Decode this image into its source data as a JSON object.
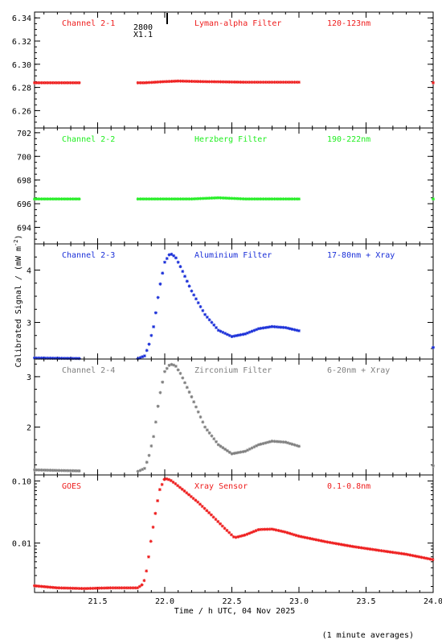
{
  "footer_note": "(1 minute averages)",
  "ylabel_main": "Calibrated Signal / (mW m",
  "ylabel_sup": "-2",
  "ylabel_close": ")",
  "xlabel": "Time / h UTC, 04 Nov 2025",
  "marker": {
    "line1": "2800",
    "line2": "X1.1"
  },
  "chart_data": [
    {
      "type": "scatter",
      "channel": "Channel 2-1",
      "filter": "Lyman-alpha Filter",
      "band": "120-123nm",
      "color": "#ee1c1c",
      "ylim": [
        6.245,
        6.345
      ],
      "yticks": [
        6.26,
        6.28,
        6.3,
        6.32,
        6.34
      ],
      "ytick_labels": [
        "6.26",
        "6.28",
        "6.30",
        "6.32",
        "6.34"
      ],
      "segments": [
        {
          "x": [
            21.03,
            21.37
          ],
          "y": [
            6.284,
            6.284
          ]
        },
        {
          "x": [
            21.8,
            21.85,
            22.0,
            22.1,
            22.3,
            22.6,
            23.0
          ],
          "y": [
            6.284,
            6.284,
            6.285,
            6.2855,
            6.285,
            6.2845,
            6.2845
          ]
        },
        {
          "x": [
            24.0,
            24.0
          ],
          "y": [
            6.284,
            6.284
          ]
        }
      ]
    },
    {
      "type": "scatter",
      "channel": "Channel 2-2",
      "filter": "Herzberg Filter",
      "band": "190-222nm",
      "color": "#22ee22",
      "ylim": [
        692.6,
        702.4
      ],
      "yticks": [
        694,
        696,
        698,
        700,
        702
      ],
      "ytick_labels": [
        "694",
        "696",
        "698",
        "700",
        "702"
      ],
      "segments": [
        {
          "x": [
            21.03,
            21.37
          ],
          "y": [
            696.4,
            696.4
          ]
        },
        {
          "x": [
            21.8,
            22.2,
            22.4,
            22.6,
            23.0
          ],
          "y": [
            696.4,
            696.4,
            696.5,
            696.4,
            696.4
          ]
        },
        {
          "x": [
            24.0,
            24.0
          ],
          "y": [
            696.4,
            696.4
          ]
        }
      ]
    },
    {
      "type": "scatter",
      "channel": "Channel 2-3",
      "filter": "Aluminium Filter",
      "band": "17-80nm + Xray",
      "color": "#1a2fd8",
      "ylim": [
        2.3,
        4.5
      ],
      "yticks": [
        3,
        4
      ],
      "ytick_labels": [
        "3",
        "4"
      ],
      "segments": [
        {
          "x": [
            21.03,
            21.37
          ],
          "y": [
            2.32,
            2.31
          ]
        },
        {
          "x": [
            21.8,
            21.85,
            21.88,
            21.92,
            21.96,
            22.0,
            22.04,
            22.08,
            22.12,
            22.2,
            22.3,
            22.4,
            22.5,
            22.6,
            22.7,
            22.8,
            22.9,
            23.0
          ],
          "y": [
            2.31,
            2.36,
            2.55,
            2.95,
            3.65,
            4.15,
            4.32,
            4.25,
            4.05,
            3.6,
            3.15,
            2.85,
            2.73,
            2.78,
            2.88,
            2.92,
            2.9,
            2.84
          ]
        },
        {
          "x": [
            24.0,
            24.0
          ],
          "y": [
            2.52,
            2.52
          ]
        }
      ]
    },
    {
      "type": "scatter",
      "channel": "Channel 2-4",
      "filter": "Zirconium Filter",
      "band": "6-20nm + Xray",
      "color": "#7f7f7f",
      "ylim": [
        1.05,
        3.35
      ],
      "yticks": [
        2,
        3
      ],
      "ytick_labels": [
        "2",
        "3"
      ],
      "segments": [
        {
          "x": [
            21.03,
            21.37
          ],
          "y": [
            1.15,
            1.13
          ]
        },
        {
          "x": [
            21.8,
            21.85,
            21.88,
            21.92,
            21.96,
            22.0,
            22.04,
            22.08,
            22.12,
            22.2,
            22.3,
            22.4,
            22.5,
            22.6,
            22.7,
            22.8,
            22.9,
            23.0
          ],
          "y": [
            1.12,
            1.18,
            1.4,
            1.85,
            2.6,
            3.1,
            3.25,
            3.22,
            3.05,
            2.6,
            2.0,
            1.65,
            1.47,
            1.52,
            1.65,
            1.72,
            1.7,
            1.62
          ]
        },
        {
          "x": [
            24.0,
            24.0
          ],
          "y": [
            1.23,
            1.23
          ]
        }
      ]
    },
    {
      "type": "scatter",
      "channel": "GOES",
      "filter": "Xray Sensor",
      "band": "0.1-0.8nm",
      "color": "#ee1c1c",
      "yscale": "log",
      "ylim": [
        0.0016,
        0.125
      ],
      "yticks": [
        0.01,
        0.1
      ],
      "ytick_labels": [
        "0.01",
        "0.10"
      ],
      "segments": [
        {
          "x": [
            21.03,
            21.2,
            21.4,
            21.6,
            21.8,
            21.84,
            21.86,
            21.88,
            21.9,
            21.93,
            21.96,
            22.0,
            22.04,
            22.08,
            22.15,
            22.25,
            22.35,
            22.45,
            22.52,
            22.6,
            22.7,
            22.8,
            22.9,
            23.0,
            23.2,
            23.4,
            23.6,
            23.8,
            24.0
          ],
          "y": [
            0.00205,
            0.0019,
            0.00185,
            0.0019,
            0.0019,
            0.0022,
            0.0032,
            0.006,
            0.012,
            0.03,
            0.07,
            0.11,
            0.104,
            0.09,
            0.068,
            0.045,
            0.028,
            0.017,
            0.0122,
            0.0135,
            0.0165,
            0.0168,
            0.015,
            0.0129,
            0.0105,
            0.0088,
            0.0076,
            0.0066,
            0.0054
          ]
        }
      ]
    }
  ],
  "xaxis": {
    "xlim": [
      21.03,
      24.0
    ],
    "ticks": [
      21.5,
      22.0,
      22.5,
      23.0,
      23.5,
      24.0
    ],
    "tick_labels": [
      "21.5",
      "22.0",
      "22.5",
      "23.0",
      "23.5",
      "24.0"
    ]
  }
}
